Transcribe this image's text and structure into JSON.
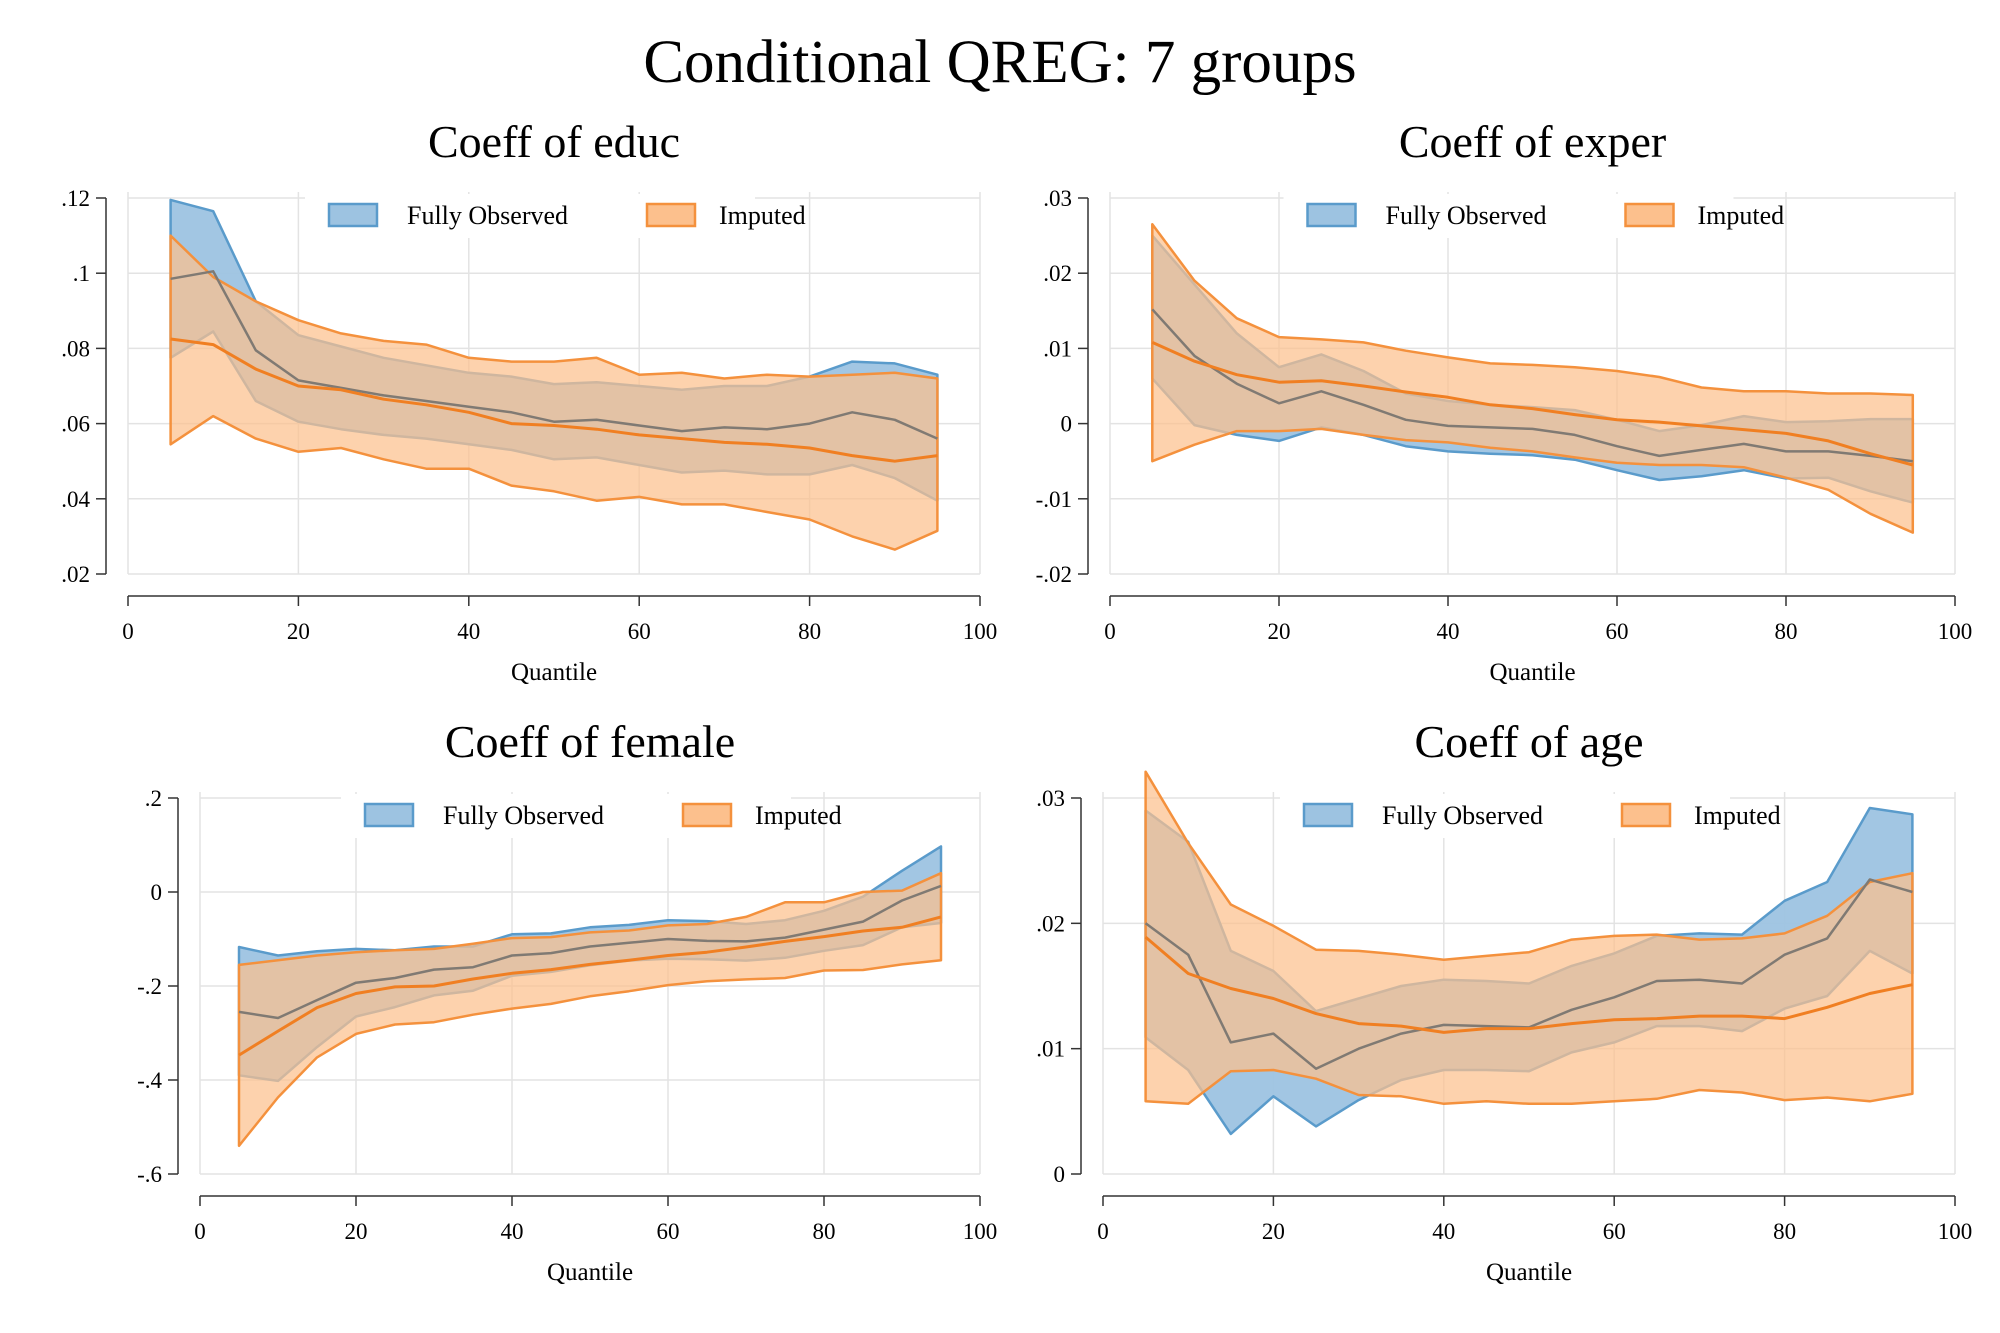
{
  "title": "Conditional QREG: 7 groups",
  "colors": {
    "observed_fill": "#9dc3e1",
    "observed_line": "#5a9bcb",
    "imputed_fill": "#fcc08d",
    "imputed_line": "#f4913d",
    "imputed_point": "#f07f22",
    "observed_point": "#807a73"
  },
  "chart_data": [
    {
      "type": "area",
      "title": "Coeff of educ",
      "xlabel": "Quantile",
      "ylabel": "",
      "xlim": [
        0,
        100
      ],
      "ylim": [
        0.02,
        0.12
      ],
      "xticks": [
        0,
        20,
        40,
        60,
        80,
        100
      ],
      "xtick_labels": [
        "0",
        "20",
        "40",
        "60",
        "80",
        "100"
      ],
      "yticks": [
        0.02,
        0.04,
        0.06,
        0.08,
        0.1,
        0.12
      ],
      "ytick_labels": [
        ".02",
        ".04",
        ".06",
        ".08",
        ".1",
        ".12"
      ],
      "grid": true,
      "legend": "top-center",
      "x": [
        5,
        10,
        15,
        20,
        25,
        30,
        35,
        40,
        45,
        50,
        55,
        60,
        65,
        70,
        75,
        80,
        85,
        90,
        95
      ],
      "series": [
        {
          "name": "Fully Observed",
          "upper": [
            0.1195,
            0.1165,
            0.0925,
            0.0835,
            0.0805,
            0.0775,
            0.0755,
            0.0735,
            0.0725,
            0.0705,
            0.071,
            0.07,
            0.069,
            0.07,
            0.07,
            0.0725,
            0.0765,
            0.076,
            0.073
          ],
          "point": [
            0.0985,
            0.1005,
            0.0795,
            0.0715,
            0.0695,
            0.0675,
            0.066,
            0.0645,
            0.063,
            0.0605,
            0.061,
            0.0595,
            0.058,
            0.059,
            0.0585,
            0.06,
            0.063,
            0.061,
            0.056
          ],
          "lower": [
            0.0775,
            0.0845,
            0.066,
            0.0605,
            0.0585,
            0.057,
            0.056,
            0.0545,
            0.053,
            0.0505,
            0.051,
            0.049,
            0.047,
            0.0475,
            0.0465,
            0.0465,
            0.049,
            0.0455,
            0.0395
          ]
        },
        {
          "name": "Imputed",
          "upper": [
            0.11,
            0.099,
            0.0925,
            0.0875,
            0.084,
            0.082,
            0.081,
            0.0775,
            0.0765,
            0.0765,
            0.0775,
            0.073,
            0.0735,
            0.072,
            0.073,
            0.0725,
            0.073,
            0.0735,
            0.072
          ],
          "point": [
            0.0825,
            0.081,
            0.0745,
            0.07,
            0.069,
            0.0665,
            0.065,
            0.063,
            0.06,
            0.0595,
            0.0585,
            0.057,
            0.056,
            0.055,
            0.0545,
            0.0535,
            0.0515,
            0.05,
            0.0515
          ],
          "lower": [
            0.0545,
            0.062,
            0.056,
            0.0525,
            0.0535,
            0.0505,
            0.048,
            0.048,
            0.0435,
            0.042,
            0.0395,
            0.0405,
            0.0385,
            0.0385,
            0.0365,
            0.0345,
            0.03,
            0.0265,
            0.0315
          ]
        }
      ]
    },
    {
      "type": "area",
      "title": "Coeff of exper",
      "xlabel": "Quantile",
      "ylabel": "",
      "xlim": [
        0,
        100
      ],
      "ylim": [
        -0.02,
        0.03
      ],
      "xticks": [
        0,
        20,
        40,
        60,
        80,
        100
      ],
      "xtick_labels": [
        "0",
        "20",
        "40",
        "60",
        "80",
        "100"
      ],
      "yticks": [
        -0.02,
        -0.01,
        0,
        0.01,
        0.02,
        0.03
      ],
      "ytick_labels": [
        "-.02",
        "-.01",
        "0",
        ".01",
        ".02",
        ".03"
      ],
      "grid": true,
      "legend": "top-center",
      "x": [
        5,
        10,
        15,
        20,
        25,
        30,
        35,
        40,
        45,
        50,
        55,
        60,
        65,
        70,
        75,
        80,
        85,
        90,
        95
      ],
      "series": [
        {
          "name": "Fully Observed",
          "upper": [
            0.025,
            0.0185,
            0.012,
            0.0075,
            0.0092,
            0.007,
            0.004,
            0.003,
            0.0025,
            0.0022,
            0.0018,
            0.0005,
            -0.001,
            -0.0002,
            0.001,
            0.0002,
            0.0003,
            0.0006,
            0.0006
          ],
          "point": [
            0.0152,
            0.009,
            0.0053,
            0.0027,
            0.0043,
            0.0025,
            0.0005,
            -0.0003,
            -0.0005,
            -0.0007,
            -0.0015,
            -0.003,
            -0.0043,
            -0.0035,
            -0.0027,
            -0.0037,
            -0.0037,
            -0.0043,
            -0.005
          ],
          "lower": [
            0.006,
            -0.0002,
            -0.0015,
            -0.0023,
            -0.0005,
            -0.0015,
            -0.003,
            -0.0037,
            -0.004,
            -0.0042,
            -0.0048,
            -0.0062,
            -0.0075,
            -0.007,
            -0.0062,
            -0.0073,
            -0.0072,
            -0.009,
            -0.0105
          ]
        },
        {
          "name": "Imputed",
          "upper": [
            0.0265,
            0.019,
            0.014,
            0.0115,
            0.0112,
            0.0108,
            0.0097,
            0.0088,
            0.008,
            0.0078,
            0.0075,
            0.007,
            0.0062,
            0.0048,
            0.0043,
            0.0043,
            0.004,
            0.004,
            0.0038
          ],
          "point": [
            0.0108,
            0.0083,
            0.0065,
            0.0055,
            0.0057,
            0.005,
            0.0042,
            0.0035,
            0.0025,
            0.002,
            0.0012,
            0.0005,
            0.0002,
            -0.0003,
            -0.0008,
            -0.0013,
            -0.0023,
            -0.004,
            -0.0055
          ],
          "lower": [
            -0.005,
            -0.0028,
            -0.001,
            -0.001,
            -0.0007,
            -0.0015,
            -0.0022,
            -0.0025,
            -0.0032,
            -0.0037,
            -0.0045,
            -0.0052,
            -0.0055,
            -0.0055,
            -0.0058,
            -0.0072,
            -0.0088,
            -0.012,
            -0.0145
          ]
        }
      ]
    },
    {
      "type": "area",
      "title": "Coeff of female",
      "xlabel": "Quantile",
      "ylabel": "",
      "xlim": [
        0,
        100
      ],
      "ylim": [
        -0.6,
        0.2
      ],
      "xticks": [
        0,
        20,
        40,
        60,
        80,
        100
      ],
      "xtick_labels": [
        "0",
        "20",
        "40",
        "60",
        "80",
        "100"
      ],
      "yticks": [
        -0.6,
        -0.4,
        -0.2,
        0,
        0.2
      ],
      "ytick_labels": [
        "-.6",
        "-.4",
        "-.2",
        "0",
        ".2"
      ],
      "grid": true,
      "legend": "top-center",
      "x": [
        5,
        10,
        15,
        20,
        25,
        30,
        35,
        40,
        45,
        50,
        55,
        60,
        65,
        70,
        75,
        80,
        85,
        90,
        95
      ],
      "series": [
        {
          "name": "Fully Observed",
          "upper": [
            -0.117,
            -0.135,
            -0.126,
            -0.121,
            -0.124,
            -0.116,
            -0.116,
            -0.09,
            -0.088,
            -0.075,
            -0.07,
            -0.06,
            -0.062,
            -0.068,
            -0.06,
            -0.04,
            -0.01,
            0.045,
            0.097
          ],
          "point": [
            -0.255,
            -0.268,
            -0.23,
            -0.193,
            -0.183,
            -0.165,
            -0.16,
            -0.135,
            -0.13,
            -0.116,
            -0.108,
            -0.1,
            -0.104,
            -0.105,
            -0.097,
            -0.08,
            -0.063,
            -0.018,
            0.013
          ],
          "lower": [
            -0.39,
            -0.402,
            -0.33,
            -0.265,
            -0.245,
            -0.22,
            -0.21,
            -0.178,
            -0.17,
            -0.156,
            -0.146,
            -0.142,
            -0.143,
            -0.146,
            -0.14,
            -0.125,
            -0.113,
            -0.075,
            -0.066
          ]
        },
        {
          "name": "Imputed",
          "upper": [
            -0.155,
            -0.145,
            -0.135,
            -0.128,
            -0.124,
            -0.121,
            -0.11,
            -0.098,
            -0.096,
            -0.086,
            -0.082,
            -0.071,
            -0.068,
            -0.053,
            -0.022,
            -0.022,
            0.0,
            0.003,
            0.04
          ],
          "point": [
            -0.347,
            -0.296,
            -0.246,
            -0.216,
            -0.202,
            -0.2,
            -0.185,
            -0.173,
            -0.165,
            -0.154,
            -0.145,
            -0.135,
            -0.128,
            -0.117,
            -0.105,
            -0.095,
            -0.083,
            -0.075,
            -0.053
          ],
          "lower": [
            -0.54,
            -0.437,
            -0.352,
            -0.302,
            -0.282,
            -0.277,
            -0.261,
            -0.248,
            -0.238,
            -0.222,
            -0.211,
            -0.198,
            -0.19,
            -0.186,
            -0.183,
            -0.167,
            -0.166,
            -0.154,
            -0.145
          ]
        }
      ]
    },
    {
      "type": "area",
      "title": "Coeff of age",
      "xlabel": "Quantile",
      "ylabel": "",
      "xlim": [
        0,
        100
      ],
      "ylim": [
        0,
        0.03
      ],
      "xticks": [
        0,
        20,
        40,
        60,
        80,
        100
      ],
      "xtick_labels": [
        "0",
        "20",
        "40",
        "60",
        "80",
        "100"
      ],
      "yticks": [
        0,
        0.01,
        0.02,
        0.03
      ],
      "ytick_labels": [
        "0",
        ".01",
        ".02",
        ".03"
      ],
      "grid": true,
      "legend": "top-center",
      "x": [
        5,
        10,
        15,
        20,
        25,
        30,
        35,
        40,
        45,
        50,
        55,
        60,
        65,
        70,
        75,
        80,
        85,
        90,
        95
      ],
      "series": [
        {
          "name": "Fully Observed",
          "upper": [
            0.029,
            0.0265,
            0.0178,
            0.0162,
            0.013,
            0.014,
            0.015,
            0.0155,
            0.0154,
            0.0152,
            0.0166,
            0.0176,
            0.019,
            0.0192,
            0.0191,
            0.0218,
            0.0233,
            0.0292,
            0.0287
          ],
          "point": [
            0.02,
            0.0175,
            0.0105,
            0.0112,
            0.0084,
            0.01,
            0.0112,
            0.0119,
            0.0118,
            0.0117,
            0.0131,
            0.0141,
            0.0154,
            0.0155,
            0.0152,
            0.0175,
            0.0188,
            0.0235,
            0.0225
          ],
          "lower": [
            0.0109,
            0.0083,
            0.0032,
            0.0062,
            0.0038,
            0.0059,
            0.0075,
            0.0083,
            0.0083,
            0.0082,
            0.0097,
            0.0105,
            0.0118,
            0.0118,
            0.0114,
            0.0132,
            0.0142,
            0.0178,
            0.016
          ]
        },
        {
          "name": "Imputed",
          "upper": [
            0.0321,
            0.0264,
            0.0215,
            0.0198,
            0.0179,
            0.0178,
            0.0175,
            0.0171,
            0.0174,
            0.0177,
            0.0187,
            0.019,
            0.0191,
            0.0187,
            0.0188,
            0.0192,
            0.0206,
            0.0233,
            0.024
          ],
          "point": [
            0.0189,
            0.016,
            0.0148,
            0.014,
            0.0128,
            0.012,
            0.0118,
            0.0113,
            0.0116,
            0.0116,
            0.012,
            0.0123,
            0.0124,
            0.0126,
            0.0126,
            0.0124,
            0.0133,
            0.0144,
            0.0151
          ],
          "lower": [
            0.0058,
            0.0056,
            0.0082,
            0.0083,
            0.0076,
            0.0063,
            0.0062,
            0.0056,
            0.0058,
            0.0056,
            0.0056,
            0.0058,
            0.006,
            0.0067,
            0.0065,
            0.0059,
            0.0061,
            0.0058,
            0.0064
          ]
        }
      ]
    }
  ]
}
